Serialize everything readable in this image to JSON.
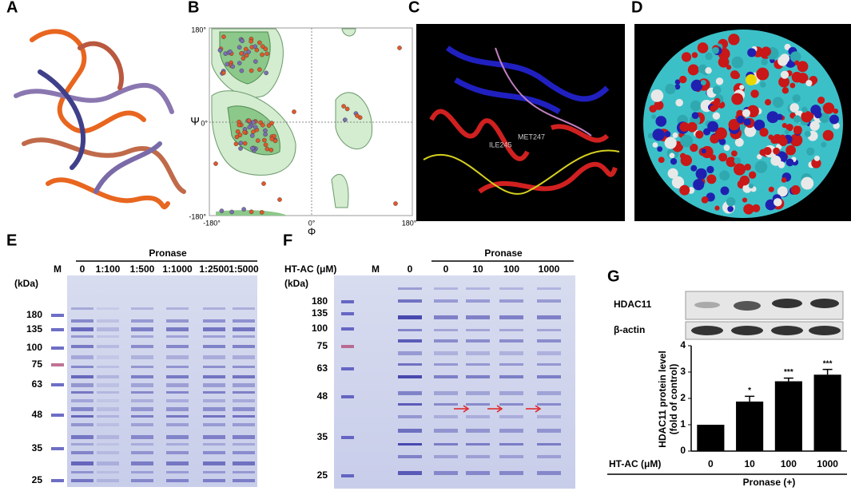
{
  "panel_labels": [
    "A",
    "B",
    "C",
    "D",
    "E",
    "F",
    "G"
  ],
  "ramachandran": {
    "y_label": "Ψ",
    "x_label": "Φ",
    "y_top": "180°",
    "y_mid": "0°",
    "y_bottom": "-180°",
    "x_left": "-180°",
    "x_mid": "0°",
    "x_right": "180°"
  },
  "structure_labels": [
    "ILE245",
    "MET247"
  ],
  "gel_e": {
    "title": "Pronase",
    "unit": "(kDa)",
    "lanes": [
      "M",
      "0",
      "1:100",
      "1:500",
      "1:1000",
      "1:2500",
      "1:5000"
    ],
    "markers": [
      "180",
      "135",
      "100",
      "75",
      "63",
      "48",
      "35",
      "25"
    ]
  },
  "gel_f": {
    "title": "Pronase",
    "row_label": "HT-AC (μM)",
    "unit": "(kDa)",
    "lanes": [
      "M",
      "0",
      "0",
      "10",
      "100",
      "1000"
    ],
    "markers": [
      "180",
      "135",
      "100",
      "75",
      "63",
      "48",
      "35",
      "25"
    ]
  },
  "blot_g": {
    "rows": [
      "HDAC11",
      "β-actin"
    ]
  },
  "chart_data": {
    "type": "bar",
    "y_label": [
      "HDAC11 protein level",
      "(fold of control)"
    ],
    "x_label": "HT-AC (μM)",
    "footer": "Pronase (+)",
    "categories": [
      "0",
      "10",
      "100",
      "1000"
    ],
    "values": [
      1,
      1.88,
      2.65,
      2.9
    ],
    "errors": [
      0,
      0.2,
      0.12,
      0.2
    ],
    "annotations": [
      null,
      "*",
      "***",
      "***"
    ],
    "color": "#000000",
    "ylim": [
      0,
      4
    ],
    "yticks": [
      0,
      1,
      2,
      3,
      4
    ]
  }
}
